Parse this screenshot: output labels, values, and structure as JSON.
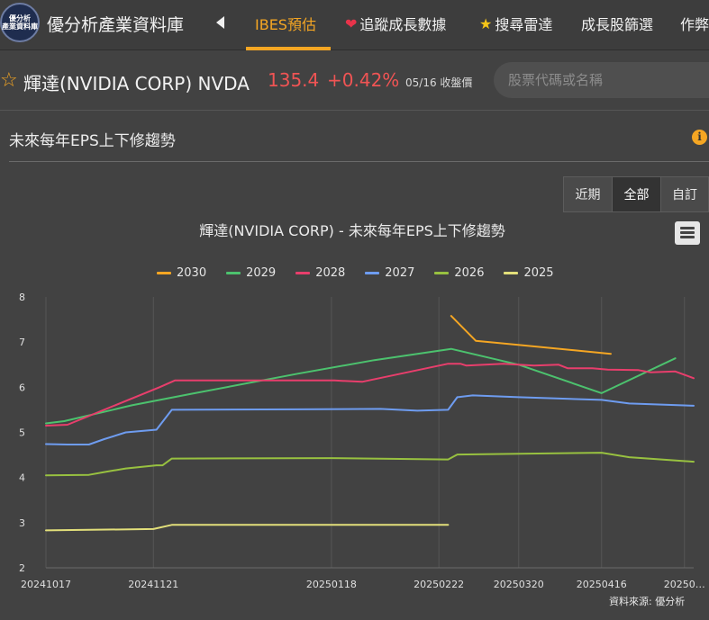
{
  "header": {
    "logo_text": [
      "優分析",
      "產業資料庫"
    ],
    "brand": "優分析產業資料庫",
    "nav": [
      {
        "label": "IBES預估",
        "icon": "",
        "active": true
      },
      {
        "label": "追蹤成長數據",
        "icon": "heart-icon",
        "active": false
      },
      {
        "label": "搜尋雷達",
        "icon": "star-icon",
        "active": false
      },
      {
        "label": "成長股篩選",
        "icon": "",
        "active": false
      },
      {
        "label": "作弊",
        "icon": "",
        "active": false
      }
    ]
  },
  "stock": {
    "name": "輝達(NVIDIA CORP) NVDA",
    "price": "135.4",
    "change": "+0.42%",
    "date_note": "05/16 收盤價",
    "search_placeholder": "股票代碼或名稱"
  },
  "section": {
    "title": "未來每年EPS上下修趨勢",
    "info": "i"
  },
  "range_buttons": [
    {
      "label": "近期",
      "active": false
    },
    {
      "label": "全部",
      "active": true
    },
    {
      "label": "自訂",
      "active": false
    }
  ],
  "source_note": "資料來源: 優分析",
  "colors": {
    "accent": "#f5a623",
    "up": "#f05454"
  },
  "chart_data": {
    "type": "line",
    "title": "輝達(NVIDIA CORP) - 未來每年EPS上下修趨勢",
    "xlabel": "",
    "ylabel": "",
    "ylim": [
      2,
      8
    ],
    "yticks": [
      2,
      3,
      4,
      5,
      6,
      7,
      8
    ],
    "xlim": [
      "2024-10-17",
      "2025-05-16"
    ],
    "xticks": [
      {
        "date": "2024-10-17",
        "label": "20241017"
      },
      {
        "date": "2024-11-21",
        "label": "20241121"
      },
      {
        "date": "2025-01-18",
        "label": "20250118"
      },
      {
        "date": "2025-02-22",
        "label": "20250222"
      },
      {
        "date": "2025-03-20",
        "label": "20250320"
      },
      {
        "date": "2025-04-16",
        "label": "20250416"
      },
      {
        "date": "2025-05-13",
        "label": "20250…"
      }
    ],
    "grid": "vertical",
    "legend": "top",
    "series": [
      {
        "name": "2030",
        "color": "#f5a623",
        "points": [
          [
            "2025-02-26",
            7.58
          ],
          [
            "2025-03-06",
            7.03
          ],
          [
            "2025-04-19",
            6.74
          ]
        ]
      },
      {
        "name": "2029",
        "color": "#4cc26e",
        "points": [
          [
            "2024-10-17",
            5.2
          ],
          [
            "2024-10-23",
            5.25
          ],
          [
            "2024-11-14",
            5.6
          ],
          [
            "2024-12-03",
            5.85
          ],
          [
            "2025-01-07",
            6.3
          ],
          [
            "2025-02-01",
            6.6
          ],
          [
            "2025-02-26",
            6.85
          ],
          [
            "2025-03-20",
            6.5
          ],
          [
            "2025-04-16",
            5.87
          ],
          [
            "2025-05-10",
            6.64
          ]
        ]
      },
      {
        "name": "2028",
        "color": "#e83e6c",
        "points": [
          [
            "2024-10-17",
            5.15
          ],
          [
            "2024-10-24",
            5.17
          ],
          [
            "2024-11-23",
            6.0
          ],
          [
            "2024-11-28",
            6.15
          ],
          [
            "2025-01-19",
            6.15
          ],
          [
            "2025-01-28",
            6.12
          ],
          [
            "2025-02-25",
            6.52
          ],
          [
            "2025-03-01",
            6.52
          ],
          [
            "2025-03-03",
            6.48
          ],
          [
            "2025-03-15",
            6.52
          ],
          [
            "2025-03-25",
            6.48
          ],
          [
            "2025-04-02",
            6.5
          ],
          [
            "2025-04-05",
            6.42
          ],
          [
            "2025-04-13",
            6.42
          ],
          [
            "2025-04-18",
            6.39
          ],
          [
            "2025-04-28",
            6.38
          ],
          [
            "2025-05-02",
            6.33
          ],
          [
            "2025-05-10",
            6.35
          ],
          [
            "2025-05-16",
            6.2
          ]
        ]
      },
      {
        "name": "2027",
        "color": "#6e9cf0",
        "points": [
          [
            "2024-10-17",
            4.74
          ],
          [
            "2024-10-24",
            4.73
          ],
          [
            "2024-10-31",
            4.73
          ],
          [
            "2024-11-05",
            4.85
          ],
          [
            "2024-11-12",
            5.0
          ],
          [
            "2024-11-22",
            5.06
          ],
          [
            "2024-11-27",
            5.5
          ],
          [
            "2025-01-07",
            5.51
          ],
          [
            "2025-02-03",
            5.52
          ],
          [
            "2025-02-15",
            5.48
          ],
          [
            "2025-02-25",
            5.5
          ],
          [
            "2025-02-28",
            5.78
          ],
          [
            "2025-03-05",
            5.82
          ],
          [
            "2025-03-20",
            5.78
          ],
          [
            "2025-04-16",
            5.72
          ],
          [
            "2025-04-25",
            5.64
          ],
          [
            "2025-05-16",
            5.59
          ]
        ]
      },
      {
        "name": "2026",
        "color": "#98c140",
        "points": [
          [
            "2024-10-17",
            4.05
          ],
          [
            "2024-10-31",
            4.06
          ],
          [
            "2024-11-05",
            4.12
          ],
          [
            "2024-11-12",
            4.2
          ],
          [
            "2024-11-22",
            4.27
          ],
          [
            "2024-11-24",
            4.27
          ],
          [
            "2024-11-27",
            4.42
          ],
          [
            "2025-01-18",
            4.43
          ],
          [
            "2025-02-25",
            4.4
          ],
          [
            "2025-02-28",
            4.51
          ],
          [
            "2025-04-16",
            4.55
          ],
          [
            "2025-04-25",
            4.45
          ],
          [
            "2025-05-16",
            4.35
          ]
        ]
      },
      {
        "name": "2025",
        "color": "#e2df7a",
        "points": [
          [
            "2024-10-17",
            2.83
          ],
          [
            "2024-11-21",
            2.86
          ],
          [
            "2024-11-27",
            2.95
          ],
          [
            "2025-02-25",
            2.95
          ]
        ]
      }
    ]
  }
}
